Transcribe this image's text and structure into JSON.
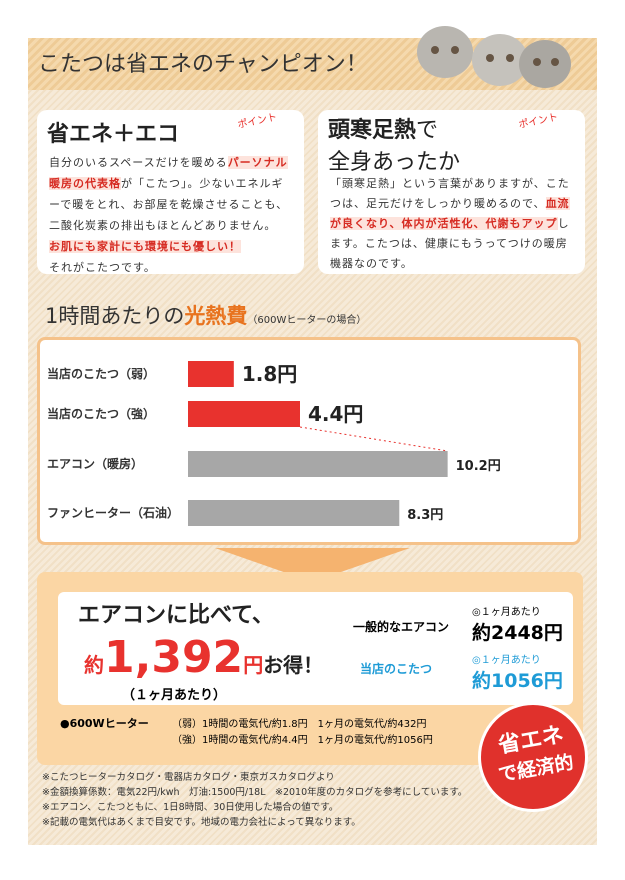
{
  "header": {
    "title": "こたつは省エネのチャンピオン！"
  },
  "panels": [
    {
      "title": "省エネ＋エコ",
      "badge": "ポイント",
      "body": [
        "自分のいるスペースだけを暖める",
        "パーソナル暖房の代表格",
        "が「こたつ」。少ないエネルギーで暖をとれ、お部屋を乾燥させることも、二酸化炭素の排出もほとんどありません。",
        "お肌にも家計にも環境にも優しい！",
        "それがこたつです。"
      ]
    },
    {
      "title": "頭寒足熱",
      "title_suffix": "で",
      "title_line2": "全身あったか",
      "badge": "ポイント",
      "body": [
        "「頭寒足熱」という言葉がありますが、こたつは、足元だけをしっかり暖めるので、",
        "血流が良くなり、体内が活性化、代謝もアップ",
        "します。こたつは、健康にもうってつけの暖房機器なのです。"
      ]
    }
  ],
  "chart": {
    "type": "bar",
    "title": "1時間あたりの",
    "title_highlight": "光熱費",
    "subtitle": "（600Wヒーターの場合）",
    "categories": [
      "当店のこたつ（弱）",
      "当店のこたつ（強）",
      "エアコン（暖房）",
      "ファンヒーター（石油）"
    ],
    "values": [
      1.8,
      4.4,
      10.2,
      8.3
    ],
    "value_labels": [
      "1.8円",
      "4.4円",
      "10.2円",
      "8.3円"
    ],
    "colors": [
      "#e8322e",
      "#e8322e",
      "#a7a7a7",
      "#a7a7a7"
    ],
    "xlim": [
      0,
      11
    ]
  },
  "comparison": {
    "lead": "エアコンに比べて、",
    "prefix": "約",
    "amount": "1,392",
    "unit": "円",
    "suffix": "お得！",
    "period": "（１ヶ月あたり）",
    "items": [
      {
        "name": "一般的なエアコン",
        "note": "◎１ヶ月あたり",
        "price": "約2448円"
      },
      {
        "name": "当店のこたつ",
        "note": "◎１ヶ月あたり",
        "price": "約1056円"
      }
    ],
    "spec_label": "●600Wヒーター",
    "spec_rows": [
      [
        "（弱）1時間の電気代/約1.8円",
        "1ヶ月の電気代/約432円"
      ],
      [
        "（強）1時間の電気代/約4.4円",
        "1ヶ月の電気代/約1056円"
      ]
    ],
    "badge": [
      "省エネ",
      "で経済的"
    ]
  },
  "notes": [
    "※こたつヒーターカタログ・電器店カタログ・東京ガスカタログより",
    "※金額換算係数：電気22円/kwh　灯油:1500円/18L　※2010年度のカタログを参考にしています。",
    "※エアコン、こたつともに、1日8時間、30日使用した場合の値です。",
    "※記載の電気代はあくまで目安です。地域の電力会社によって異なります。"
  ]
}
